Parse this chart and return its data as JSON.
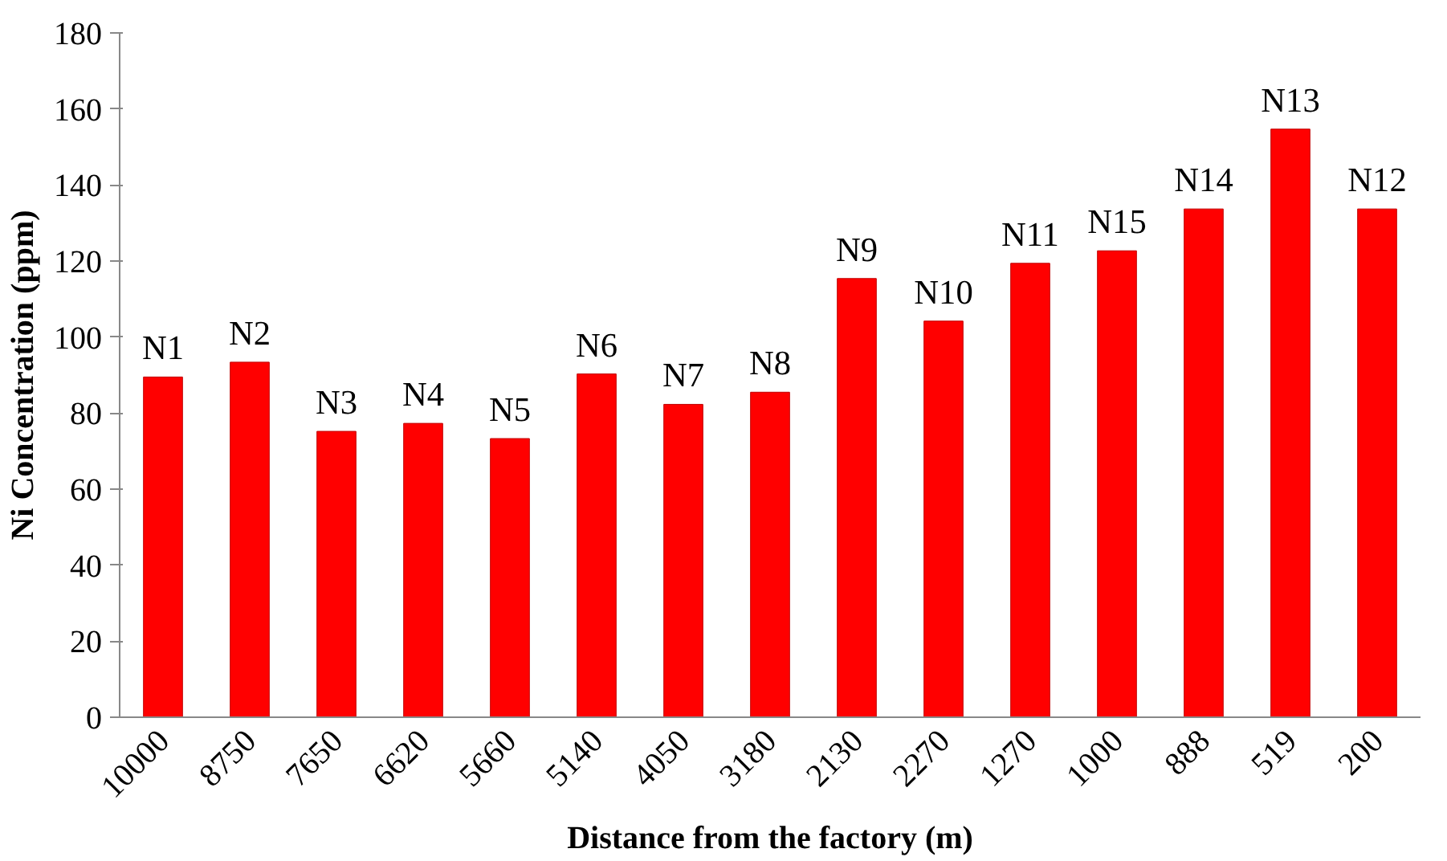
{
  "chart_data": {
    "type": "bar",
    "xlabel": "Distance from the factory (m)",
    "ylabel": "Ni Concentration (ppm)",
    "categories": [
      "10000",
      "8750",
      "7650",
      "6620",
      "5660",
      "5140",
      "4050",
      "3180",
      "2130",
      "2270",
      "1270",
      "1000",
      "888",
      "519",
      "200"
    ],
    "values": [
      89.5,
      93.4,
      75.2,
      77.3,
      73.3,
      90.3,
      82.3,
      85.5,
      115.4,
      104.2,
      119.4,
      122.7,
      133.7,
      154.7,
      133.7
    ],
    "value_labels": [
      "N1",
      "N2",
      "N3",
      "N4",
      "N5",
      "N6",
      "N7",
      "N8",
      "N9",
      "N10",
      "N11",
      "N15",
      "N14",
      "N13",
      "N12"
    ],
    "color": "#ff0000",
    "ylim": [
      0,
      180
    ],
    "yticks": [
      0,
      20,
      40,
      60,
      80,
      100,
      120,
      140,
      160,
      180
    ],
    "grid": false
  }
}
